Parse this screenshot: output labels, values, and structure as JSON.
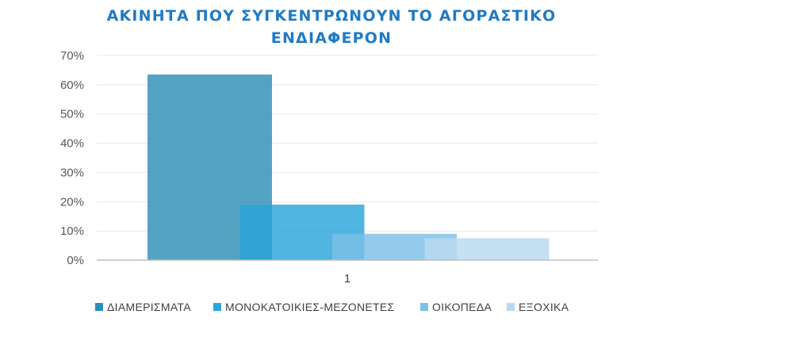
{
  "chart_data": {
    "type": "bar",
    "title_lines": [
      "ΑΚΙΝΗΤΑ ΠΟΥ ΣΥΓΚΕΝΤΡΩΝΟΥΝ ΤΟ ΑΓΟΡΑΣΤΙΚΟ",
      "ΕΝΔΙΑΦΕΡΟΝ"
    ],
    "categories": [
      "1"
    ],
    "series": [
      {
        "name": "ΔΙΑΜΕΡΙΣΜΑΤΑ",
        "values": [
          63.5
        ],
        "color": "#2e8fb5"
      },
      {
        "name": "ΜΟΝΟΚΑΤΟΙΚΙΕΣ-ΜΕΖΟΝΕΤΕΣ",
        "values": [
          19
        ],
        "color": "#2aa5d9"
      },
      {
        "name": "ΟΙΚΟΠΕΔΑ",
        "values": [
          9
        ],
        "color": "#7cc0e6"
      },
      {
        "name": "ΕΞΟΧΙΚΑ",
        "values": [
          7.5
        ],
        "color": "#b8d9ef"
      }
    ],
    "ylim": [
      0,
      70
    ],
    "yticks": [
      "0%",
      "10%",
      "20%",
      "30%",
      "40%",
      "50%",
      "60%",
      "70%"
    ],
    "grid": true,
    "legend_position": "bottom",
    "title_color": "#1f7bc4"
  }
}
